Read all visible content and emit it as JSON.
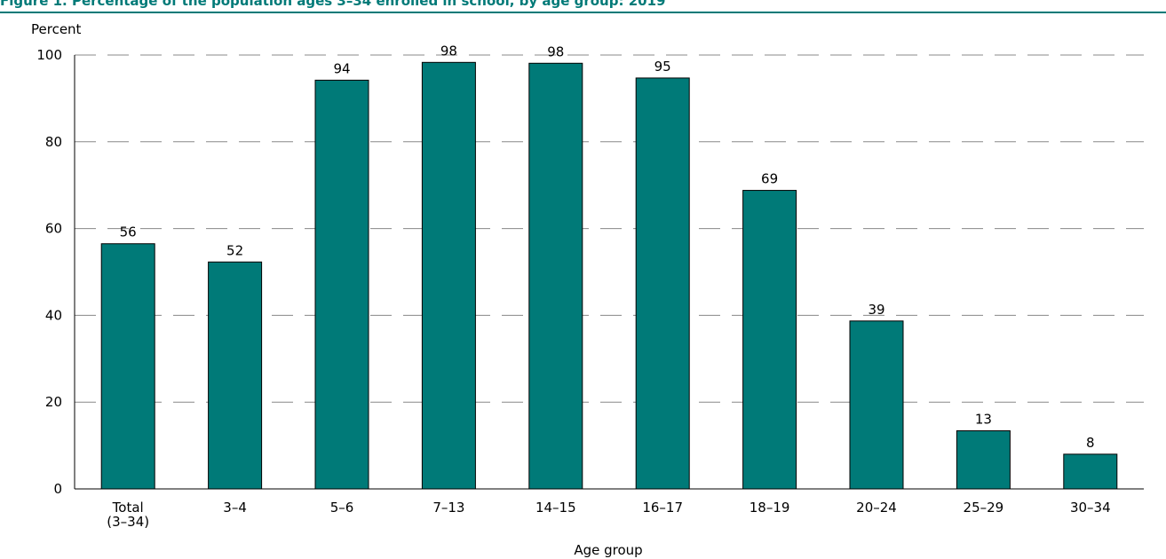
{
  "chart_data": {
    "type": "bar",
    "title": "Figure 1. Percentage of the population ages 3–34 enrolled in school, by age group: 2019",
    "xlabel": "Age group",
    "ylabel": "Percent",
    "ylim": [
      0,
      100
    ],
    "yticks": [
      "0",
      "20",
      "40",
      "60",
      "80",
      "100"
    ],
    "grid": "dashed horizontal",
    "bar_color": "#007a78",
    "categories": [
      [
        "Total",
        "(3–34)"
      ],
      [
        "3–4"
      ],
      [
        "5–6"
      ],
      [
        "7–13"
      ],
      [
        "14–15"
      ],
      [
        "16–17"
      ],
      [
        "18–19"
      ],
      [
        "20–24"
      ],
      [
        "25–29"
      ],
      [
        "30–34"
      ]
    ],
    "values": [
      56.5,
      52.3,
      94.2,
      98.3,
      98.1,
      94.7,
      68.8,
      38.7,
      13.4,
      8.0
    ],
    "value_labels": [
      "56",
      "52",
      "94",
      "98",
      "98",
      "95",
      "69",
      "39",
      "13",
      "8"
    ]
  }
}
